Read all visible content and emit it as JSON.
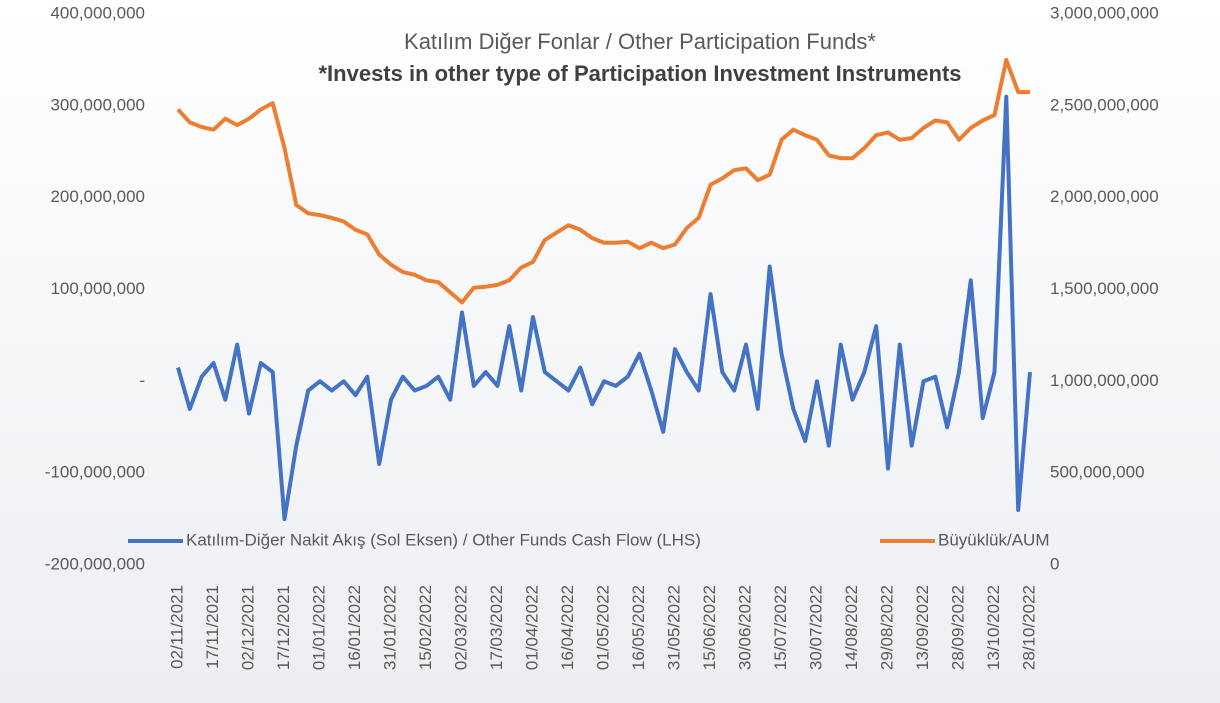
{
  "chart_data": {
    "type": "line",
    "title": "Katılım Diğer Fonlar / Other Participation Funds*",
    "subtitle": "*Invests in other type of Participation Investment Instruments",
    "grid": false,
    "legend": "bottom",
    "x": [
      "02/11/2021",
      "07/11/2021",
      "12/11/2021",
      "17/11/2021",
      "22/11/2021",
      "27/11/2021",
      "02/12/2021",
      "07/12/2021",
      "12/12/2021",
      "17/12/2021",
      "22/12/2021",
      "27/12/2021",
      "01/01/2022",
      "06/01/2022",
      "11/01/2022",
      "16/01/2022",
      "21/01/2022",
      "26/01/2022",
      "31/01/2022",
      "05/02/2022",
      "10/02/2022",
      "15/02/2022",
      "20/02/2022",
      "25/02/2022",
      "02/03/2022",
      "07/03/2022",
      "12/03/2022",
      "17/03/2022",
      "22/03/2022",
      "27/03/2022",
      "01/04/2022",
      "06/04/2022",
      "11/04/2022",
      "16/04/2022",
      "21/04/2022",
      "26/04/2022",
      "01/05/2022",
      "06/05/2022",
      "11/05/2022",
      "16/05/2022",
      "21/05/2022",
      "26/05/2022",
      "31/05/2022",
      "05/06/2022",
      "10/06/2022",
      "15/06/2022",
      "20/06/2022",
      "25/06/2022",
      "30/06/2022",
      "05/07/2022",
      "10/07/2022",
      "15/07/2022",
      "20/07/2022",
      "25/07/2022",
      "30/07/2022",
      "04/08/2022",
      "09/08/2022",
      "14/08/2022",
      "19/08/2022",
      "24/08/2022",
      "29/08/2022",
      "03/09/2022",
      "08/09/2022",
      "13/09/2022",
      "18/09/2022",
      "23/09/2022",
      "28/09/2022",
      "03/10/2022",
      "08/10/2022",
      "13/10/2022",
      "18/10/2022",
      "23/10/2022",
      "28/10/2022"
    ],
    "xticks": [
      "02/11/2021",
      "17/11/2021",
      "02/12/2021",
      "17/12/2021",
      "01/01/2022",
      "16/01/2022",
      "31/01/2022",
      "15/02/2022",
      "02/03/2022",
      "17/03/2022",
      "01/04/2022",
      "16/04/2022",
      "01/05/2022",
      "16/05/2022",
      "31/05/2022",
      "15/06/2022",
      "30/06/2022",
      "15/07/2022",
      "30/07/2022",
      "14/08/2022",
      "29/08/2022",
      "13/09/2022",
      "28/09/2022",
      "13/10/2022",
      "28/10/2022"
    ],
    "ylim": [
      -200000000,
      400000000
    ],
    "yticks": [
      {
        "value": -200000000,
        "label": "-200,000,000"
      },
      {
        "value": -100000000,
        "label": "-100,000,000"
      },
      {
        "value": 0,
        "label": "-"
      },
      {
        "value": 100000000,
        "label": "100,000,000"
      },
      {
        "value": 200000000,
        "label": "200,000,000"
      },
      {
        "value": 300000000,
        "label": "300,000,000"
      },
      {
        "value": 400000000,
        "label": "400,000,000"
      }
    ],
    "y2lim": [
      0,
      3000000000
    ],
    "y2ticks": [
      0,
      {
        "value": 500000000,
        "label": "500,000,000"
      },
      {
        "value": 1000000000,
        "label": "1,000,000,000"
      },
      {
        "value": 1500000000,
        "label": "1,500,000,000"
      },
      {
        "value": 2000000000,
        "label": "2,000,000,000"
      },
      {
        "value": 2500000000,
        "label": "2,500,000,000"
      },
      {
        "value": 3000000000,
        "label": "3,000,000,000"
      }
    ],
    "series": [
      {
        "name": "Katılım-Diğer Nakit Akış (Sol Eksen) / Other Funds Cash Flow (LHS)",
        "color": "#4472c4",
        "axis": "y",
        "values": [
          15000000,
          -30000000,
          5000000,
          20000000,
          -20000000,
          40000000,
          -35000000,
          20000000,
          10000000,
          -150000000,
          -70000000,
          -10000000,
          0,
          -10000000,
          0,
          -15000000,
          5000000,
          -90000000,
          -20000000,
          5000000,
          -10000000,
          -5000000,
          5000000,
          -20000000,
          75000000,
          -5000000,
          10000000,
          -5000000,
          60000000,
          -10000000,
          70000000,
          10000000,
          0,
          -10000000,
          15000000,
          -25000000,
          0,
          -5000000,
          5000000,
          30000000,
          -10000000,
          -55000000,
          35000000,
          10000000,
          -10000000,
          95000000,
          10000000,
          -10000000,
          40000000,
          -30000000,
          125000000,
          30000000,
          -30000000,
          -65000000,
          0,
          -70000000,
          40000000,
          -20000000,
          10000000,
          60000000,
          -95000000,
          40000000,
          -70000000,
          0,
          5000000,
          -50000000,
          10000000,
          110000000,
          -40000000,
          10000000,
          310000000,
          -140000000,
          10000000
        ]
      },
      {
        "name": "Büyüklük/AUM",
        "color": "#ed7d31",
        "axis": "y2",
        "values": [
          2480000000,
          2410000000,
          2385000000,
          2370000000,
          2430000000,
          2395000000,
          2430000000,
          2480000000,
          2515000000,
          2270000000,
          1960000000,
          1915000000,
          1905000000,
          1890000000,
          1870000000,
          1825000000,
          1800000000,
          1690000000,
          1635000000,
          1595000000,
          1580000000,
          1550000000,
          1540000000,
          1485000000,
          1430000000,
          1510000000,
          1515000000,
          1525000000,
          1550000000,
          1620000000,
          1650000000,
          1770000000,
          1810000000,
          1850000000,
          1825000000,
          1780000000,
          1755000000,
          1755000000,
          1760000000,
          1725000000,
          1755000000,
          1725000000,
          1745000000,
          1835000000,
          1890000000,
          2070000000,
          2105000000,
          2150000000,
          2160000000,
          2095000000,
          2125000000,
          2315000000,
          2370000000,
          2340000000,
          2315000000,
          2230000000,
          2215000000,
          2215000000,
          2270000000,
          2340000000,
          2355000000,
          2315000000,
          2325000000,
          2380000000,
          2420000000,
          2410000000,
          2315000000,
          2380000000,
          2420000000,
          2450000000,
          2750000000,
          2575000000,
          2575000000
        ]
      }
    ]
  }
}
